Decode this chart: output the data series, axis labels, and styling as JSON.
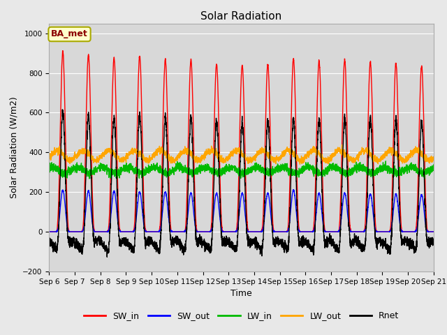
{
  "title": "Solar Radiation",
  "ylabel": "Solar Radiation (W/m2)",
  "xlabel": "Time",
  "station_label": "BA_met",
  "ylim": [
    -200,
    1050
  ],
  "n_days": 15,
  "dt_hours": 0.1,
  "colors": {
    "SW_in": "#ff0000",
    "SW_out": "#0000ff",
    "LW_in": "#00bb00",
    "LW_out": "#ffa500",
    "Rnet": "#000000"
  },
  "line_widths": {
    "SW_in": 1.0,
    "SW_out": 1.0,
    "LW_in": 1.0,
    "LW_out": 1.0,
    "Rnet": 1.0
  },
  "background_color": "#e8e8e8",
  "plot_bg_color": "#d8d8d8",
  "grid_color": "#ffffff",
  "tick_labels": [
    "Sep 6",
    "Sep 7",
    "Sep 8",
    "Sep 9",
    "Sep 10",
    "Sep 11",
    "Sep 12",
    "Sep 13",
    "Sep 14",
    "Sep 15",
    "Sep 16",
    "Sep 17",
    "Sep 18",
    "Sep 19",
    "Sep 20",
    "Sep 21"
  ],
  "peak_SW_in": [
    910,
    890,
    875,
    885,
    870,
    865,
    845,
    840,
    845,
    870,
    860,
    865,
    855,
    850,
    835
  ],
  "peak_SW_out": [
    210,
    205,
    205,
    200,
    200,
    195,
    195,
    195,
    195,
    210,
    195,
    195,
    190,
    190,
    185
  ],
  "LW_in_base": 310,
  "LW_out_base": 385
}
